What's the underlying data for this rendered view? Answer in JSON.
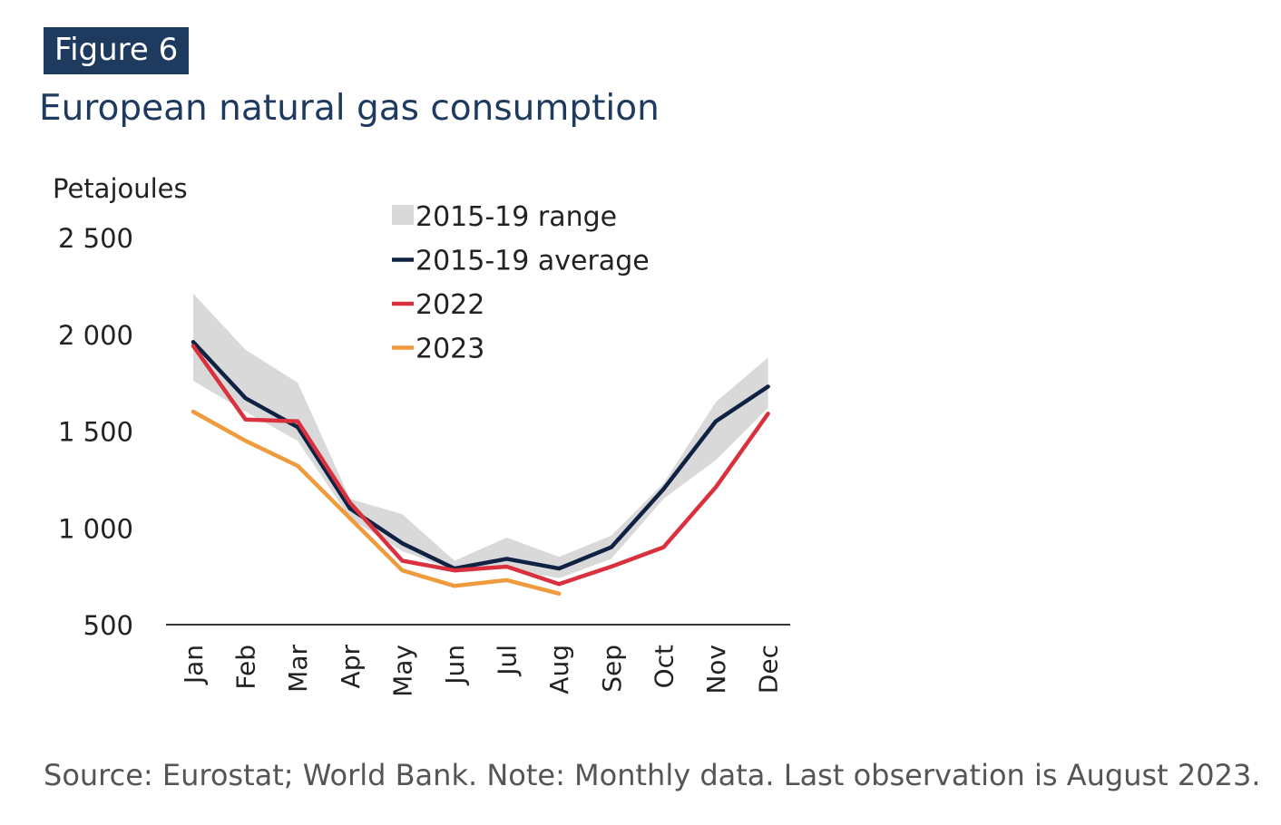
{
  "figure_label": "Figure 6",
  "figure_title": "European natural gas consumption",
  "source_note": "Source: Eurostat; World Bank. Note: Monthly data. Last observation is August 2023.",
  "chart_data": {
    "type": "line",
    "title": "European natural gas consumption",
    "ylabel": "Petajoules",
    "xlabel": "",
    "ylim": [
      500,
      2500
    ],
    "yticks": [
      500,
      1000,
      1500,
      2000,
      2500
    ],
    "ytick_labels": [
      "500",
      "1 000",
      "1 500",
      "2 000",
      "2 500"
    ],
    "categories": [
      "Jan",
      "Feb",
      "Mar",
      "Apr",
      "May",
      "Jun",
      "Jul",
      "Aug",
      "Sep",
      "Oct",
      "Nov",
      "Dec"
    ],
    "range": {
      "name": "2015-19 range",
      "color": "#d9d9d9",
      "low": [
        1760,
        1600,
        1450,
        1050,
        880,
        780,
        790,
        740,
        840,
        1150,
        1350,
        1620
      ],
      "high": [
        2210,
        1920,
        1750,
        1150,
        1070,
        830,
        950,
        850,
        960,
        1230,
        1650,
        1880
      ]
    },
    "series": [
      {
        "name": "2015-19 average",
        "color": "#0f2244",
        "values": [
          1960,
          1670,
          1520,
          1100,
          920,
          790,
          840,
          790,
          900,
          1200,
          1550,
          1730
        ]
      },
      {
        "name": "2022",
        "color": "#d9313d",
        "values": [
          1940,
          1560,
          1550,
          1130,
          830,
          780,
          800,
          710,
          800,
          900,
          1210,
          1590
        ]
      },
      {
        "name": "2023",
        "color": "#ef9a3c",
        "values": [
          1600,
          1450,
          1320,
          1050,
          780,
          700,
          730,
          660,
          null,
          null,
          null,
          null
        ]
      }
    ],
    "legend_position": "top-center"
  }
}
